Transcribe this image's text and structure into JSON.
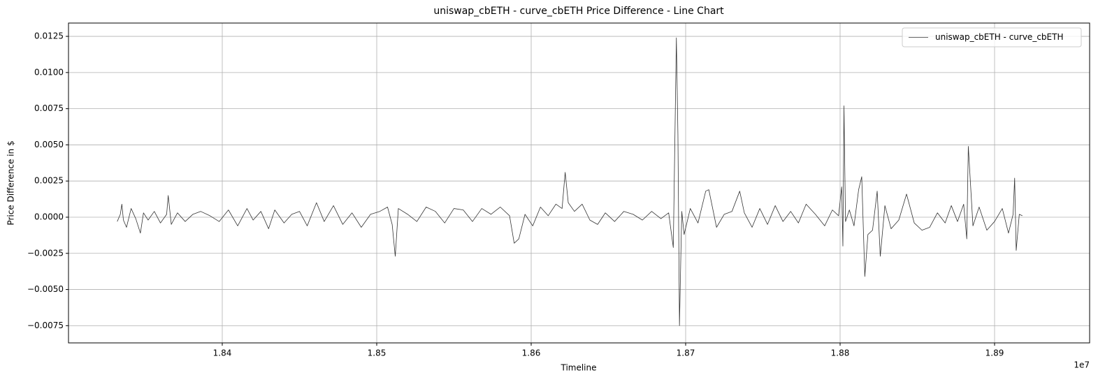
{
  "chart_data": {
    "type": "line",
    "title": "uniswap_cbETH - curve_cbETH Price Difference - Line Chart",
    "x_label": "Timeline",
    "y_label": "Price Difference in $",
    "x_offset_label": "1e7",
    "xlim": [
      18300450,
      18961540
    ],
    "ylim": [
      -0.00869,
      0.01342
    ],
    "xticks": [
      {
        "value": 18400000,
        "label": "1.84"
      },
      {
        "value": 18500000,
        "label": "1.85"
      },
      {
        "value": 18600000,
        "label": "1.86"
      },
      {
        "value": 18700000,
        "label": "1.87"
      },
      {
        "value": 18800000,
        "label": "1.88"
      },
      {
        "value": 18900000,
        "label": "1.89"
      }
    ],
    "yticks": [
      {
        "value": -0.0075,
        "label": "−0.0075"
      },
      {
        "value": -0.005,
        "label": "−0.0050"
      },
      {
        "value": -0.0025,
        "label": "−0.0025"
      },
      {
        "value": 0,
        "label": "0.0000"
      },
      {
        "value": 0.0025,
        "label": "0.0025"
      },
      {
        "value": 0.005,
        "label": "0.0050"
      },
      {
        "value": 0.0075,
        "label": "0.0075"
      },
      {
        "value": 0.01,
        "label": "0.0100"
      },
      {
        "value": 0.0125,
        "label": "0.0125"
      }
    ],
    "grid": true,
    "legend": "upper right",
    "series": [
      {
        "name": "uniswap_cbETH - curve_cbETH",
        "color": "#333333",
        "x": [
          18332000,
          18334000,
          18335000,
          18336000,
          18338000,
          18341000,
          18344000,
          18347000,
          18349000,
          18352000,
          18356000,
          18360000,
          18364000,
          18365000,
          18367000,
          18371000,
          18376000,
          18381000,
          18386000,
          18392000,
          18398000,
          18404000,
          18410000,
          18416000,
          18420000,
          18425000,
          18430000,
          18434000,
          18440000,
          18445000,
          18450000,
          18455000,
          18461000,
          18466000,
          18472000,
          18478000,
          18484000,
          18490000,
          18496000,
          18502000,
          18507000,
          18510000,
          18512000,
          18514000,
          18520000,
          18526000,
          18532000,
          18538000,
          18544000,
          18550000,
          18556000,
          18562000,
          18568000,
          18574000,
          18580000,
          18586000,
          18589000,
          18592000,
          18596000,
          18601000,
          18606000,
          18611000,
          18616000,
          18620000,
          18622000,
          18624000,
          18628000,
          18633000,
          18638000,
          18643000,
          18648000,
          18654000,
          18660000,
          18666000,
          18672000,
          18678000,
          18684000,
          18689000,
          18692000,
          18694000,
          18695000,
          18696000,
          18697000,
          18697500,
          18699000,
          18703000,
          18708000,
          18713000,
          18715000,
          18720000,
          18725000,
          18730000,
          18735000,
          18738000,
          18743000,
          18748000,
          18753000,
          18758000,
          18763000,
          18768000,
          18773000,
          18778000,
          18784000,
          18790000,
          18795000,
          18799000,
          18801000,
          18801800,
          18802500,
          18803500,
          18806000,
          18809000,
          18812000,
          18814000,
          18816000,
          18818000,
          18821000,
          18824000,
          18826000,
          18829000,
          18833000,
          18838000,
          18843000,
          18848000,
          18853000,
          18858000,
          18863000,
          18868000,
          18872000,
          18876000,
          18880000,
          18882000,
          18883000,
          18886000,
          18890000,
          18895000,
          18900000,
          18905000,
          18909000,
          18912000,
          18913000,
          18914000,
          18916000,
          18918000
        ],
        "values": [
          -0.0003,
          0.0002,
          0.0009,
          -0.0002,
          -0.0007,
          0.0006,
          -0.0001,
          -0.0011,
          0.0003,
          -0.0002,
          0.0004,
          -0.0004,
          0.0002,
          0.0015,
          -0.0005,
          0.0003,
          -0.0003,
          0.0002,
          0.0004,
          0.0001,
          -0.0003,
          0.0005,
          -0.0006,
          0.0006,
          -0.0002,
          0.0004,
          -0.0008,
          0.0005,
          -0.0004,
          0.0002,
          0.0004,
          -0.0006,
          0.001,
          -0.0003,
          0.0008,
          -0.0005,
          0.0003,
          -0.0007,
          0.0002,
          0.0004,
          0.0007,
          -0.0005,
          -0.0027,
          0.0006,
          0.0002,
          -0.0003,
          0.0007,
          0.0004,
          -0.0004,
          0.0006,
          0.0005,
          -0.0003,
          0.0006,
          0.0002,
          0.0007,
          0.0001,
          -0.0018,
          -0.0015,
          0.0002,
          -0.0006,
          0.0007,
          0.0001,
          0.0009,
          0.0006,
          0.0031,
          0.001,
          0.0004,
          0.0009,
          -0.0002,
          -0.0005,
          0.0003,
          -0.0003,
          0.0004,
          0.0002,
          -0.0002,
          0.0004,
          -0.0001,
          0.0003,
          -0.0021,
          0.0124,
          0.0057,
          -0.0075,
          -0.0021,
          0.0004,
          -0.0012,
          0.0006,
          -0.0004,
          0.0018,
          0.0019,
          -0.0007,
          0.0002,
          0.0004,
          0.0018,
          0.0003,
          -0.0007,
          0.0006,
          -0.0005,
          0.0008,
          -0.0003,
          0.0004,
          -0.0004,
          0.0009,
          0.0002,
          -0.0006,
          0.0005,
          0.0001,
          0.0021,
          -0.002,
          0.0077,
          -0.0003,
          0.0005,
          -0.0006,
          0.0019,
          0.0028,
          -0.0041,
          -0.0012,
          -0.0009,
          0.0018,
          -0.0027,
          0.0008,
          -0.0008,
          -0.0002,
          0.0016,
          -0.0004,
          -0.0009,
          -0.0007,
          0.0003,
          -0.0004,
          0.0008,
          -0.0003,
          0.0009,
          -0.0015,
          0.0049,
          -0.0006,
          0.0007,
          -0.0009,
          -0.0003,
          0.0006,
          -0.0011,
          0.0002,
          0.0027,
          -0.0023,
          0.0002,
          0.0001
        ]
      }
    ]
  }
}
